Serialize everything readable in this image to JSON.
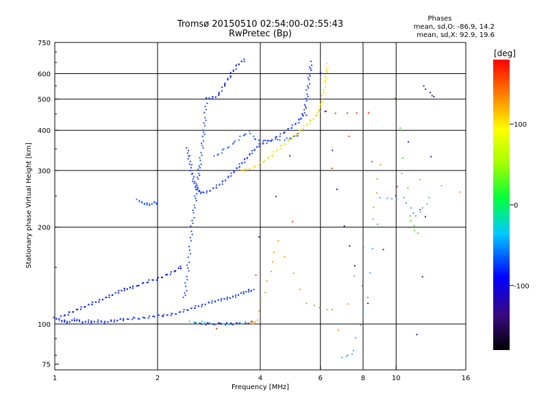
{
  "chart_data": {
    "type": "scatter",
    "title": "Tromsø 20150510 02:54:00-02:55:43",
    "subtitle": "RwPretec (Bp)",
    "info": {
      "header": "Phases",
      "line1": "mean, sd,O:  -86.9, 14.2",
      "line2": "mean, sd,X:   92.9, 19.6"
    },
    "xlabel": "Frequency [MHz]",
    "ylabel": "Stationary phase Virtual Height [km]",
    "x_scale": "log",
    "y_scale": "log",
    "xlim": [
      1,
      16
    ],
    "ylim": [
      72,
      750
    ],
    "x_ticks": [
      1,
      2,
      4,
      6,
      8,
      10,
      16
    ],
    "x_tick_labels": [
      "1",
      "2",
      "4",
      "6",
      "8",
      "10",
      "16"
    ],
    "y_ticks": [
      75,
      100,
      200,
      300,
      400,
      500,
      600,
      750
    ],
    "y_tick_labels": [
      "75",
      "100",
      "200",
      "300",
      "400",
      "500",
      "600",
      "750"
    ],
    "x_gridlines": [
      2,
      4,
      6,
      8,
      10
    ],
    "y_gridlines": [
      100,
      200,
      300,
      400,
      500,
      600
    ],
    "colorbar": {
      "label": "[deg]",
      "range": [
        -180,
        180
      ],
      "ticks": [
        100,
        0,
        -100
      ],
      "tick_labels": [
        "100",
        "0",
        "-100"
      ]
    },
    "series": [
      {
        "phase_deg": -92,
        "color": "#1a3cff",
        "points": [
          [
            1.0,
            104
          ],
          [
            1.03,
            103
          ],
          [
            1.06,
            102
          ],
          [
            1.09,
            101
          ],
          [
            1.12,
            102
          ],
          [
            1.15,
            103
          ],
          [
            1.18,
            102
          ],
          [
            1.22,
            101
          ],
          [
            1.26,
            102
          ],
          [
            1.3,
            101
          ],
          [
            1.35,
            102
          ],
          [
            1.4,
            101
          ],
          [
            1.45,
            102
          ],
          [
            1.5,
            102
          ],
          [
            1.55,
            103
          ],
          [
            1.6,
            103
          ],
          [
            1.7,
            104
          ],
          [
            1.8,
            104
          ],
          [
            1.9,
            105
          ],
          [
            2.0,
            106
          ],
          [
            2.1,
            106
          ],
          [
            2.2,
            107
          ],
          [
            2.3,
            108
          ],
          [
            2.4,
            110
          ],
          [
            2.5,
            111
          ],
          [
            2.6,
            113
          ],
          [
            2.7,
            114
          ],
          [
            2.8,
            116
          ],
          [
            2.9,
            117
          ],
          [
            3.0,
            118
          ],
          [
            3.1,
            119
          ],
          [
            3.2,
            120
          ],
          [
            3.3,
            121
          ],
          [
            3.4,
            122
          ],
          [
            3.5,
            124
          ],
          [
            3.6,
            125
          ],
          [
            3.7,
            127
          ],
          [
            3.8,
            127
          ]
        ]
      },
      {
        "phase_deg": -110,
        "color": "#0a1ee8",
        "points": [
          [
            1.05,
            105
          ],
          [
            1.1,
            108
          ],
          [
            1.15,
            110
          ],
          [
            1.2,
            112
          ],
          [
            1.25,
            114
          ],
          [
            1.3,
            116
          ],
          [
            1.35,
            118
          ],
          [
            1.4,
            120
          ],
          [
            1.45,
            122
          ],
          [
            1.5,
            124
          ],
          [
            1.55,
            126
          ],
          [
            1.6,
            128
          ],
          [
            1.65,
            129
          ],
          [
            1.7,
            130
          ],
          [
            1.8,
            133
          ],
          [
            1.9,
            136
          ],
          [
            2.0,
            138
          ],
          [
            2.1,
            141
          ],
          [
            2.2,
            144
          ],
          [
            2.3,
            148
          ],
          [
            2.35,
            150
          ]
        ]
      },
      {
        "phase_deg": -95,
        "color": "#1a4cff",
        "points": [
          [
            2.4,
            120
          ],
          [
            2.42,
            130
          ],
          [
            2.45,
            145
          ],
          [
            2.47,
            160
          ],
          [
            2.5,
            180
          ],
          [
            2.52,
            200
          ],
          [
            2.55,
            220
          ],
          [
            2.58,
            240
          ],
          [
            2.6,
            260
          ],
          [
            2.62,
            280
          ],
          [
            2.65,
            300
          ],
          [
            2.67,
            320
          ],
          [
            2.7,
            350
          ],
          [
            2.72,
            380
          ],
          [
            2.74,
            410
          ],
          [
            2.76,
            450
          ],
          [
            2.78,
            500
          ]
        ]
      },
      {
        "phase_deg": -98,
        "color": "#1f3cf5",
        "points": [
          [
            2.45,
            350
          ],
          [
            2.47,
            330
          ],
          [
            2.5,
            310
          ],
          [
            2.53,
            290
          ],
          [
            2.56,
            275
          ],
          [
            2.6,
            265
          ],
          [
            2.65,
            258
          ],
          [
            2.7,
            255
          ],
          [
            2.8,
            257
          ],
          [
            2.9,
            262
          ],
          [
            3.0,
            268
          ],
          [
            3.1,
            275
          ],
          [
            3.2,
            283
          ],
          [
            3.3,
            292
          ],
          [
            3.4,
            302
          ],
          [
            3.5,
            312
          ],
          [
            3.6,
            322
          ],
          [
            3.7,
            333
          ],
          [
            3.8,
            343
          ],
          [
            3.9,
            352
          ],
          [
            4.0,
            360
          ],
          [
            4.2,
            368
          ],
          [
            4.4,
            377
          ],
          [
            4.6,
            387
          ],
          [
            4.8,
            400
          ],
          [
            5.0,
            412
          ],
          [
            5.2,
            428
          ],
          [
            5.3,
            440
          ],
          [
            5.4,
            460
          ],
          [
            5.45,
            490
          ],
          [
            5.5,
            530
          ],
          [
            5.55,
            570
          ],
          [
            5.6,
            610
          ],
          [
            5.65,
            650
          ]
        ]
      },
      {
        "phase_deg": -90,
        "color": "#2a5cff",
        "points": [
          [
            2.95,
            330
          ],
          [
            3.1,
            345
          ],
          [
            3.3,
            360
          ],
          [
            3.5,
            380
          ],
          [
            3.7,
            395
          ],
          [
            3.9,
            372
          ],
          [
            4.1,
            370
          ],
          [
            4.4,
            372
          ],
          [
            4.8,
            375
          ],
          [
            5.0,
            380
          ],
          [
            5.2,
            388
          ]
        ]
      },
      {
        "phase_deg": -100,
        "color": "#1428e0",
        "points": [
          [
            2.8,
            500
          ],
          [
            2.9,
            505
          ],
          [
            3.0,
            510
          ],
          [
            3.1,
            540
          ],
          [
            3.2,
            570
          ],
          [
            3.3,
            600
          ],
          [
            3.4,
            630
          ],
          [
            3.5,
            650
          ],
          [
            3.6,
            660
          ]
        ]
      },
      {
        "phase_deg": -90,
        "color": "#2e62ff",
        "points": [
          [
            1.75,
            242
          ],
          [
            1.8,
            238
          ],
          [
            1.85,
            236
          ],
          [
            1.9,
            234
          ],
          [
            1.95,
            238
          ],
          [
            2.0,
            236
          ]
        ]
      },
      {
        "phase_deg": 95,
        "color": "#f0e010",
        "points": [
          [
            3.5,
            300
          ],
          [
            3.6,
            300
          ],
          [
            3.8,
            305
          ],
          [
            4.0,
            315
          ],
          [
            4.2,
            325
          ],
          [
            4.4,
            340
          ],
          [
            4.6,
            355
          ],
          [
            4.8,
            368
          ],
          [
            5.0,
            380
          ],
          [
            5.2,
            395
          ],
          [
            5.4,
            410
          ],
          [
            5.6,
            425
          ],
          [
            5.8,
            440
          ],
          [
            5.9,
            450
          ],
          [
            6.0,
            470
          ],
          [
            6.1,
            510
          ],
          [
            6.2,
            560
          ],
          [
            6.25,
            600
          ],
          [
            6.3,
            640
          ]
        ]
      },
      {
        "phase_deg": 110,
        "color": "#f5a000",
        "points": [
          [
            3.7,
            100
          ],
          [
            3.8,
            101
          ],
          [
            3.9,
            102
          ],
          [
            4.2,
            135
          ],
          [
            4.5,
            180
          ],
          [
            5.5,
            115
          ],
          [
            6.5,
            110
          ]
        ]
      },
      {
        "phase_deg": -20,
        "color": "#20c8ff",
        "points": [
          [
            2.5,
            101
          ],
          [
            2.7,
            101
          ],
          [
            3.0,
            100
          ],
          [
            3.3,
            100
          ],
          [
            3.6,
            101
          ]
        ]
      },
      {
        "phase_deg": -110,
        "color": "#2020d0",
        "points": [
          [
            2.6,
            100
          ],
          [
            2.8,
            100
          ],
          [
            3.0,
            100
          ],
          [
            3.2,
            100
          ],
          [
            3.4,
            100
          ],
          [
            3.8,
            101
          ]
        ]
      },
      {
        "phase_deg": 30,
        "color": "#40e020",
        "points": [
          [
            10.0,
            500
          ],
          [
            11.0,
            215
          ],
          [
            11.5,
            190
          ]
        ]
      },
      {
        "phase_deg": -60,
        "color": "#40a0ff",
        "points": [
          [
            7.0,
            78
          ],
          [
            7.5,
            82
          ],
          [
            8.2,
            120
          ],
          [
            9.0,
            245
          ],
          [
            10.5,
            245
          ],
          [
            11.5,
            215
          ],
          [
            12.5,
            245
          ]
        ]
      },
      {
        "phase_deg": 160,
        "color": "#ff3010",
        "points": [
          [
            3.0,
            96
          ],
          [
            8.3,
            450
          ],
          [
            6.2,
            455
          ],
          [
            11.8,
            225
          ]
        ]
      },
      {
        "phase_deg": -150,
        "color": "#3010a0",
        "points": [
          [
            4.0,
            185
          ],
          [
            6.0,
            600
          ],
          [
            7.0,
            200
          ],
          [
            8.3,
            115
          ],
          [
            12.0,
            545
          ],
          [
            13.0,
            505
          ],
          [
            11.5,
            92
          ]
        ]
      },
      {
        "phase_deg": 120,
        "color": "#ff9020",
        "points": [
          [
            15.5,
            255
          ],
          [
            9.0,
            310
          ],
          [
            8.5,
            210
          ],
          [
            6.8,
            95
          ]
        ]
      }
    ]
  }
}
